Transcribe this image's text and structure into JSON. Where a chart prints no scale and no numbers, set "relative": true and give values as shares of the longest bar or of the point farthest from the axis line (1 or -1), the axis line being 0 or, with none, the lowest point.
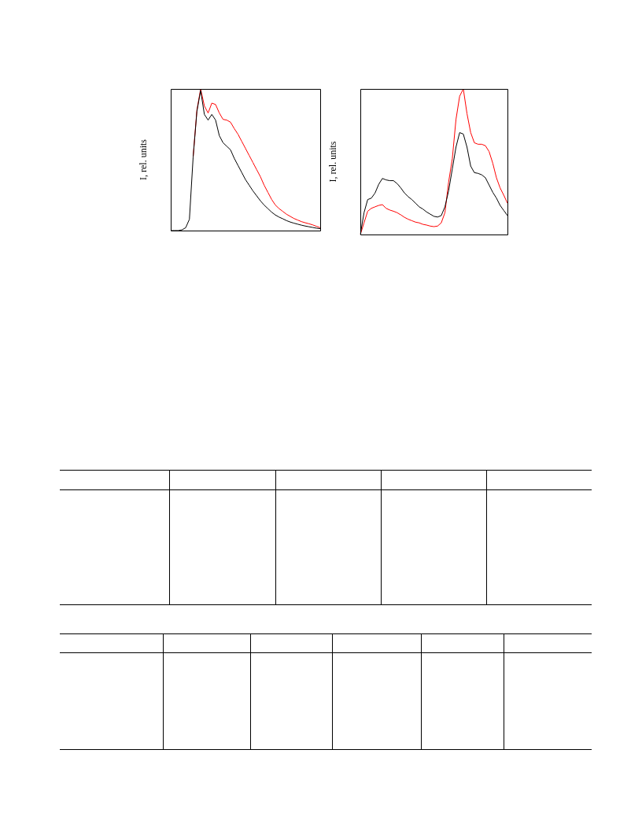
{
  "chart_data": [
    {
      "type": "line",
      "ylabel": "I, rel. units",
      "relative": true,
      "legend": false,
      "marker": "none",
      "line_style": "solid",
      "categories": [
        null,
        null,
        null,
        null,
        null,
        null,
        null,
        null,
        null,
        null,
        null,
        null,
        null,
        null,
        null,
        null,
        null,
        null,
        null,
        null,
        null,
        null,
        null,
        null,
        null,
        null,
        null,
        null,
        null,
        null,
        null,
        null,
        null,
        null,
        null,
        null,
        null,
        null,
        null,
        null,
        null
      ],
      "series": [
        {
          "color": "#000000",
          "values": [
            0,
            0,
            0,
            0.005,
            0.02,
            0.08,
            0.52,
            0.84,
            0.99,
            0.82,
            0.78,
            0.82,
            0.78,
            0.67,
            0.62,
            0.595,
            0.57,
            0.51,
            0.46,
            0.41,
            0.36,
            0.32,
            0.28,
            0.245,
            0.21,
            0.18,
            0.155,
            0.13,
            0.11,
            0.095,
            0.083,
            0.07,
            0.06,
            0.052,
            0.045,
            0.038,
            0.032,
            0.027,
            0.022,
            0.017,
            0.013
          ]
        },
        {
          "color": "#ff0000",
          "values": [
            null,
            null,
            null,
            null,
            null,
            null,
            0.52,
            0.85,
            1,
            0.88,
            0.83,
            0.9,
            0.89,
            0.83,
            0.785,
            0.78,
            0.765,
            0.72,
            0.68,
            0.63,
            0.58,
            0.53,
            0.48,
            0.43,
            0.38,
            0.32,
            0.27,
            0.22,
            0.18,
            0.155,
            0.135,
            0.115,
            0.1,
            0.085,
            0.074,
            0.063,
            0.055,
            0.048,
            0.04,
            0.03,
            0.02
          ]
        }
      ]
    },
    {
      "type": "line",
      "ylabel": "I, rel. units",
      "relative": true,
      "legend": false,
      "marker": "none",
      "line_style": "solid",
      "categories": [
        null,
        null,
        null,
        null,
        null,
        null,
        null,
        null,
        null,
        null,
        null,
        null,
        null,
        null,
        null,
        null,
        null,
        null,
        null,
        null,
        null,
        null,
        null,
        null,
        null,
        null,
        null,
        null,
        null,
        null,
        null,
        null,
        null,
        null,
        null,
        null,
        null,
        null,
        null,
        null,
        null
      ],
      "series": [
        {
          "color": "#000000",
          "values": [
            0,
            0.15,
            0.24,
            0.25,
            0.285,
            0.345,
            0.385,
            0.375,
            0.37,
            0.37,
            0.35,
            0.32,
            0.285,
            0.26,
            0.24,
            0.215,
            0.19,
            0.175,
            0.155,
            0.14,
            0.125,
            0.12,
            0.13,
            0.19,
            0.3,
            0.45,
            0.6,
            0.7,
            0.69,
            0.6,
            0.47,
            0.425,
            0.42,
            0.41,
            0.39,
            0.34,
            0.29,
            0.25,
            0.2,
            0.165,
            0.13
          ]
        },
        {
          "color": "#ff0000",
          "values": [
            0,
            0.08,
            0.16,
            0.18,
            0.19,
            0.2,
            0.205,
            0.18,
            0.168,
            0.16,
            0.15,
            0.135,
            0.118,
            0.105,
            0.095,
            0.085,
            0.08,
            0.07,
            0.065,
            0.058,
            0.054,
            0.058,
            0.08,
            0.15,
            0.36,
            0.52,
            0.79,
            0.95,
            1,
            0.83,
            0.7,
            0.63,
            0.62,
            0.62,
            0.61,
            0.57,
            0.49,
            0.39,
            0.32,
            0.27,
            0.215
          ]
        }
      ]
    }
  ]
}
